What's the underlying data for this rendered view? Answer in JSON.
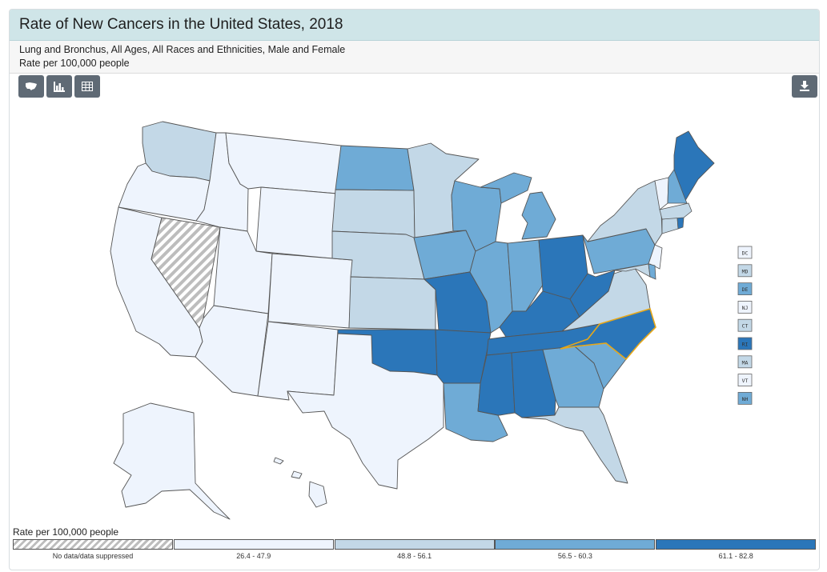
{
  "header": {
    "title": "Rate of New Cancers in the United States, 2018",
    "subtitle_line1": "Lung and Bronchus, All Ages, All Races and Ethnicities, Male and Female",
    "subtitle_line2": "Rate per 100,000 people"
  },
  "toolbar": {
    "buttons": [
      {
        "name": "map-view-button",
        "icon": "us-map-icon"
      },
      {
        "name": "chart-view-button",
        "icon": "bar-chart-icon"
      },
      {
        "name": "table-view-button",
        "icon": "table-icon"
      }
    ],
    "download_icon": "download-icon"
  },
  "colors": {
    "c0": "#eef4fd",
    "c1": "#c3d8e7",
    "c2": "#6fabd6",
    "c3": "#2b76b9",
    "highlight": "#e8a818",
    "outline": "#555555"
  },
  "legend": {
    "title": "Rate per 100,000 people",
    "items": [
      {
        "label": "No data/data suppressed",
        "class": "none"
      },
      {
        "label": "26.4 - 47.9",
        "class": "c0"
      },
      {
        "label": "48.8 - 56.1",
        "class": "c1"
      },
      {
        "label": "56.5 - 60.3",
        "class": "c2"
      },
      {
        "label": "61.1 - 82.8",
        "class": "c3"
      }
    ]
  },
  "small_states": [
    {
      "abbr": "DC",
      "class": "c0"
    },
    {
      "abbr": "MD",
      "class": "c1"
    },
    {
      "abbr": "DE",
      "class": "c2"
    },
    {
      "abbr": "NJ",
      "class": "c0"
    },
    {
      "abbr": "CT",
      "class": "c1"
    },
    {
      "abbr": "RI",
      "class": "c3"
    },
    {
      "abbr": "MA",
      "class": "c1"
    },
    {
      "abbr": "VT",
      "class": "c0"
    },
    {
      "abbr": "NH",
      "class": "c2"
    }
  ],
  "states": {
    "WA": "c1",
    "OR": "c0",
    "CA": "c0",
    "NV": "none",
    "ID": "c0",
    "MT": "c0",
    "WY": "c0",
    "UT": "c0",
    "AZ": "c0",
    "CO": "c0",
    "NM": "c0",
    "ND": "c2",
    "SD": "c1",
    "NE": "c1",
    "KS": "c1",
    "OK": "c3",
    "TX": "c0",
    "MN": "c1",
    "IA": "c2",
    "MO": "c3",
    "AR": "c3",
    "LA": "c2",
    "WI": "c2",
    "IL": "c2",
    "MI": "c2",
    "IN": "c2",
    "OH": "c3",
    "KY": "c3",
    "TN": "c3",
    "MS": "c3",
    "AL": "c3",
    "GA": "c2",
    "FL": "c1",
    "SC": "c2",
    "NC": "c3",
    "VA": "c1",
    "WV": "c3",
    "PA": "c2",
    "NY": "c1",
    "ME": "c3",
    "AK": "c0",
    "HI": "c0"
  }
}
